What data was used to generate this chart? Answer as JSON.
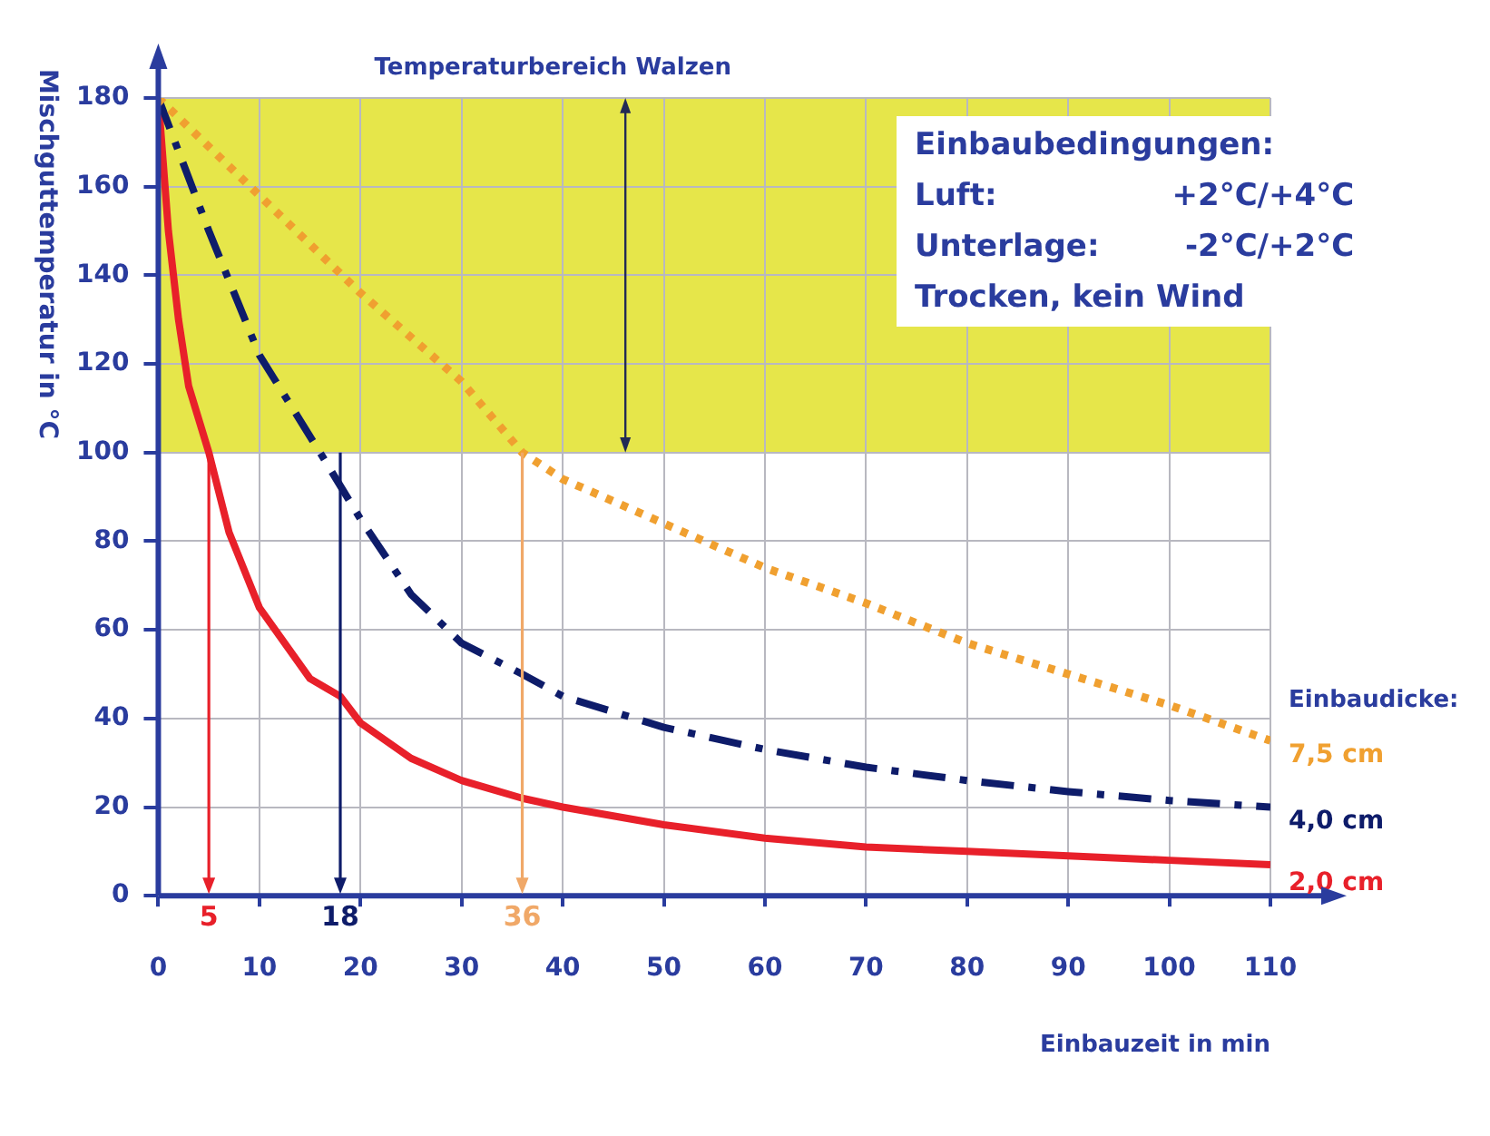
{
  "chart_data": {
    "type": "line",
    "xlabel": "Einbauzeit in min",
    "ylabel": "Mischguttemperatur in °C",
    "legend_title": "Einbaudicke:",
    "xlim": [
      0,
      110
    ],
    "xticks": [
      0,
      10,
      20,
      30,
      40,
      50,
      60,
      70,
      80,
      90,
      100,
      110
    ],
    "ylim": [
      0,
      180
    ],
    "yticks": [
      0,
      20,
      40,
      60,
      80,
      100,
      120,
      140,
      160,
      180
    ],
    "grid": true,
    "legend": "right",
    "marker": "none",
    "series": [
      {
        "name": "7,5 cm",
        "color": "#f0a030",
        "line_style": "dotted",
        "x": [
          0,
          10,
          20,
          30,
          36,
          40,
          50,
          60,
          70,
          80,
          90,
          100,
          110
        ],
        "values": [
          180,
          158,
          136,
          116,
          100,
          94,
          84,
          74,
          66,
          57,
          50,
          43,
          35
        ]
      },
      {
        "name": "4,0 cm",
        "color": "#0e1c6a",
        "line_style": "dashed",
        "x": [
          0,
          5,
          10,
          16,
          20,
          25,
          30,
          36,
          40,
          50,
          60,
          70,
          80,
          90,
          100,
          110
        ],
        "values": [
          180,
          150,
          122,
          100,
          85,
          68,
          57,
          50,
          45,
          38,
          33,
          29,
          26,
          23.5,
          21.5,
          20
        ]
      },
      {
        "name": "2,0 cm",
        "color": "#e8202a",
        "line_style": "solid",
        "x": [
          0,
          1,
          2,
          3,
          5,
          7,
          10,
          15,
          18,
          20,
          25,
          30,
          36,
          40,
          50,
          60,
          70,
          80,
          90,
          100,
          110
        ],
        "values": [
          180,
          150,
          130,
          115,
          100,
          82,
          65,
          49,
          45,
          39,
          31,
          26,
          22,
          20,
          16,
          13,
          11,
          10,
          9,
          8,
          7
        ]
      }
    ],
    "bands": [
      {
        "axis": "y",
        "from": 100,
        "to": 180,
        "label": "Temperaturbereich Walzen",
        "color": "#e6e64a"
      }
    ],
    "ref_lines": [
      {
        "axis": "x",
        "value": 5,
        "label": "5",
        "color": "#e8202a"
      },
      {
        "axis": "x",
        "value": 18,
        "label": "18",
        "color": "#0e1c6a"
      },
      {
        "axis": "x",
        "value": 36,
        "label": "36",
        "color": "#f0a868"
      }
    ],
    "annotations": [
      "Einbaubedingungen:",
      "Luft:",
      "+2°C/+4°C",
      "Unterlage:",
      "-2°C/+2°C",
      "Trocken, kein Wind"
    ]
  }
}
